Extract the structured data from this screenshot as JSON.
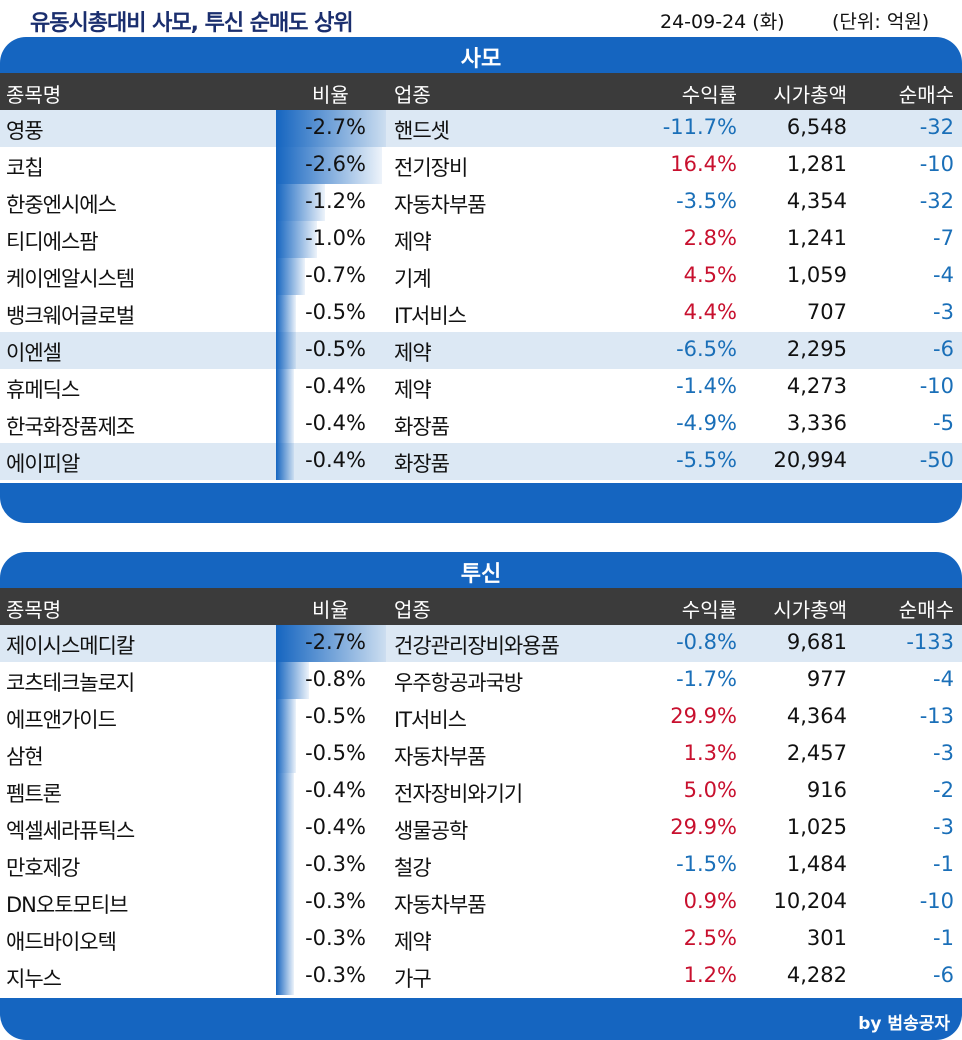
{
  "header": {
    "title": "유동시총대비 사모, 투신 순매도 상위",
    "date": "24-09-24 (화)",
    "unit": "(단위: 억원)"
  },
  "columns": {
    "name": "종목명",
    "ratio": "비율",
    "sector": "업종",
    "return": "수익률",
    "market_cap": "시가총액",
    "net_sell": "순매수"
  },
  "colors": {
    "accent": "#1565c0",
    "header_bg": "#3b3b3b",
    "highlight": "#dce8f4",
    "positive": "#c8102e",
    "negative": "#1a6fb8"
  },
  "sections": [
    {
      "title": "사모",
      "rows": [
        {
          "name": "영풍",
          "ratio": "-2.7%",
          "ratio_value": -2.7,
          "sector": "핸드셋",
          "ret": "-11.7%",
          "cap": "6,548",
          "net": "-32",
          "highlight": true
        },
        {
          "name": "코칩",
          "ratio": "-2.6%",
          "ratio_value": -2.6,
          "sector": "전기장비",
          "ret": "16.4%",
          "cap": "1,281",
          "net": "-10",
          "highlight": false
        },
        {
          "name": "한중엔시에스",
          "ratio": "-1.2%",
          "ratio_value": -1.2,
          "sector": "자동차부품",
          "ret": "-3.5%",
          "cap": "4,354",
          "net": "-32",
          "highlight": false
        },
        {
          "name": "티디에스팜",
          "ratio": "-1.0%",
          "ratio_value": -1.0,
          "sector": "제약",
          "ret": "2.8%",
          "cap": "1,241",
          "net": "-7",
          "highlight": false
        },
        {
          "name": "케이엔알시스템",
          "ratio": "-0.7%",
          "ratio_value": -0.7,
          "sector": "기계",
          "ret": "4.5%",
          "cap": "1,059",
          "net": "-4",
          "highlight": false
        },
        {
          "name": "뱅크웨어글로벌",
          "ratio": "-0.5%",
          "ratio_value": -0.5,
          "sector": "IT서비스",
          "ret": "4.4%",
          "cap": "707",
          "net": "-3",
          "highlight": false
        },
        {
          "name": "이엔셀",
          "ratio": "-0.5%",
          "ratio_value": -0.5,
          "sector": "제약",
          "ret": "-6.5%",
          "cap": "2,295",
          "net": "-6",
          "highlight": true
        },
        {
          "name": "휴메딕스",
          "ratio": "-0.4%",
          "ratio_value": -0.4,
          "sector": "제약",
          "ret": "-1.4%",
          "cap": "4,273",
          "net": "-10",
          "highlight": false
        },
        {
          "name": "한국화장품제조",
          "ratio": "-0.4%",
          "ratio_value": -0.4,
          "sector": "화장품",
          "ret": "-4.9%",
          "cap": "3,336",
          "net": "-5",
          "highlight": false
        },
        {
          "name": "에이피알",
          "ratio": "-0.4%",
          "ratio_value": -0.4,
          "sector": "화장품",
          "ret": "-5.5%",
          "cap": "20,994",
          "net": "-50",
          "highlight": true
        }
      ]
    },
    {
      "title": "투신",
      "rows": [
        {
          "name": "제이시스메디칼",
          "ratio": "-2.7%",
          "ratio_value": -2.7,
          "sector": "건강관리장비와용품",
          "ret": "-0.8%",
          "cap": "9,681",
          "net": "-133",
          "highlight": true
        },
        {
          "name": "코츠테크놀로지",
          "ratio": "-0.8%",
          "ratio_value": -0.8,
          "sector": "우주항공과국방",
          "ret": "-1.7%",
          "cap": "977",
          "net": "-4",
          "highlight": false
        },
        {
          "name": "에프앤가이드",
          "ratio": "-0.5%",
          "ratio_value": -0.5,
          "sector": "IT서비스",
          "ret": "29.9%",
          "cap": "4,364",
          "net": "-13",
          "highlight": false
        },
        {
          "name": "삼현",
          "ratio": "-0.5%",
          "ratio_value": -0.5,
          "sector": "자동차부품",
          "ret": "1.3%",
          "cap": "2,457",
          "net": "-3",
          "highlight": false
        },
        {
          "name": "펨트론",
          "ratio": "-0.4%",
          "ratio_value": -0.4,
          "sector": "전자장비와기기",
          "ret": "5.0%",
          "cap": "916",
          "net": "-2",
          "highlight": false
        },
        {
          "name": "엑셀세라퓨틱스",
          "ratio": "-0.4%",
          "ratio_value": -0.4,
          "sector": "생물공학",
          "ret": "29.9%",
          "cap": "1,025",
          "net": "-3",
          "highlight": false
        },
        {
          "name": "만호제강",
          "ratio": "-0.3%",
          "ratio_value": -0.3,
          "sector": "철강",
          "ret": "-1.5%",
          "cap": "1,484",
          "net": "-1",
          "highlight": false
        },
        {
          "name": "DN오토모티브",
          "ratio": "-0.3%",
          "ratio_value": -0.3,
          "sector": "자동차부품",
          "ret": "0.9%",
          "cap": "10,204",
          "net": "-10",
          "highlight": false
        },
        {
          "name": "애드바이오텍",
          "ratio": "-0.3%",
          "ratio_value": -0.3,
          "sector": "제약",
          "ret": "2.5%",
          "cap": "301",
          "net": "-1",
          "highlight": false
        },
        {
          "name": "지누스",
          "ratio": "-0.3%",
          "ratio_value": -0.3,
          "sector": "가구",
          "ret": "1.2%",
          "cap": "4,282",
          "net": "-6",
          "highlight": false
        }
      ]
    }
  ],
  "footer": {
    "credit": "by 범송공자"
  }
}
